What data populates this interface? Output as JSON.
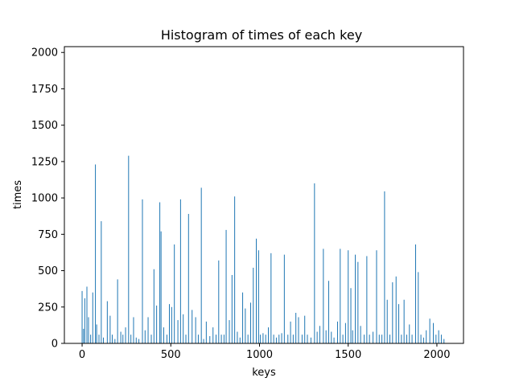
{
  "chart_data": {
    "type": "bar",
    "title": "Histogram of times of each key",
    "xlabel": "keys",
    "ylabel": "times",
    "xlim": [
      -100,
      2150
    ],
    "ylim": [
      0,
      2040
    ],
    "xticks": [
      0,
      500,
      1000,
      1500,
      2000
    ],
    "yticks": [
      0,
      250,
      500,
      750,
      1000,
      1250,
      1500,
      1750,
      2000
    ],
    "grid": false,
    "bar_color": "#1f77b4",
    "x": [
      0,
      8,
      15,
      27,
      36,
      48,
      60,
      75,
      82,
      95,
      108,
      120,
      142,
      158,
      170,
      185,
      200,
      218,
      230,
      245,
      262,
      275,
      290,
      305,
      320,
      340,
      355,
      372,
      390,
      405,
      420,
      438,
      445,
      460,
      478,
      492,
      505,
      520,
      540,
      555,
      570,
      585,
      600,
      620,
      640,
      655,
      672,
      685,
      700,
      720,
      738,
      755,
      770,
      785,
      800,
      812,
      830,
      845,
      860,
      875,
      890,
      905,
      920,
      935,
      950,
      965,
      982,
      995,
      1005,
      1020,
      1035,
      1050,
      1065,
      1080,
      1095,
      1110,
      1125,
      1140,
      1160,
      1175,
      1190,
      1205,
      1220,
      1240,
      1255,
      1270,
      1290,
      1310,
      1325,
      1340,
      1360,
      1375,
      1390,
      1405,
      1420,
      1440,
      1455,
      1470,
      1485,
      1500,
      1515,
      1525,
      1540,
      1555,
      1570,
      1590,
      1605,
      1620,
      1640,
      1660,
      1675,
      1690,
      1705,
      1720,
      1735,
      1750,
      1770,
      1785,
      1800,
      1815,
      1830,
      1845,
      1860,
      1880,
      1895,
      1910,
      1925,
      1940,
      1960,
      1980,
      1995,
      2010,
      2025,
      2040
    ],
    "values": [
      360,
      100,
      310,
      390,
      180,
      60,
      350,
      1230,
      130,
      60,
      840,
      40,
      290,
      190,
      60,
      30,
      440,
      80,
      60,
      110,
      1290,
      60,
      180,
      40,
      30,
      990,
      90,
      180,
      60,
      510,
      260,
      970,
      770,
      110,
      60,
      270,
      250,
      680,
      160,
      990,
      200,
      60,
      890,
      230,
      180,
      60,
      1070,
      30,
      150,
      50,
      110,
      60,
      570,
      60,
      60,
      780,
      160,
      470,
      1010,
      80,
      40,
      350,
      240,
      60,
      280,
      520,
      720,
      640,
      60,
      70,
      60,
      110,
      620,
      60,
      40,
      60,
      70,
      610,
      60,
      150,
      60,
      210,
      180,
      60,
      190,
      60,
      40,
      1100,
      80,
      120,
      650,
      90,
      430,
      80,
      40,
      150,
      650,
      60,
      140,
      640,
      380,
      90,
      610,
      560,
      120,
      60,
      600,
      60,
      80,
      640,
      60,
      60,
      1045,
      300,
      60,
      420,
      460,
      270,
      60,
      300,
      60,
      130,
      60,
      680,
      490,
      60,
      40,
      90,
      170,
      140,
      60,
      90,
      60,
      30
    ]
  }
}
